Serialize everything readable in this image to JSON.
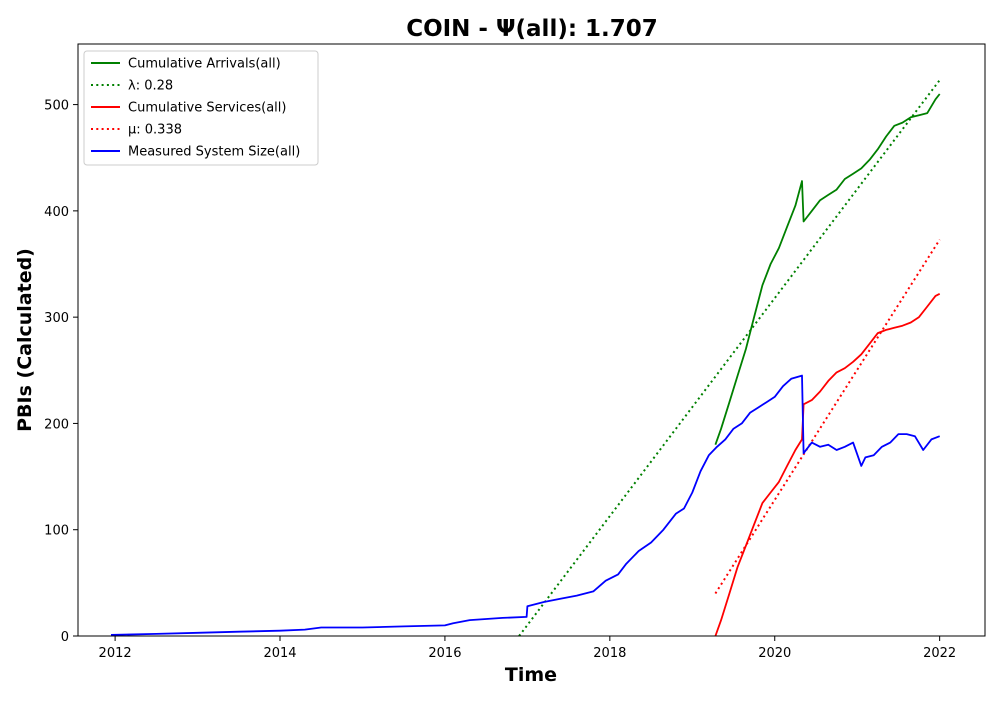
{
  "chart_data": {
    "type": "line",
    "title": "COIN -  Ψ(all): 1.707",
    "xlabel": "Time",
    "ylabel": "PBIs (Calculated)",
    "xlim": [
      2011.55,
      2022.55
    ],
    "ylim": [
      0,
      557
    ],
    "x_ticks": [
      2012,
      2014,
      2016,
      2018,
      2020,
      2022
    ],
    "y_ticks": [
      0,
      100,
      200,
      300,
      400,
      500
    ],
    "x_tick_labels": [
      "2012",
      "2014",
      "2016",
      "2018",
      "2020",
      "2022"
    ],
    "y_tick_labels": [
      "0",
      "100",
      "200",
      "300",
      "400",
      "500"
    ],
    "legend_position": "upper-left",
    "grid": false,
    "series": [
      {
        "name": "Cumulative Arrivals(all)",
        "color": "#008000",
        "style": "solid",
        "x": [
          2019.28,
          2019.35,
          2019.45,
          2019.55,
          2019.65,
          2019.75,
          2019.85,
          2019.95,
          2020.05,
          2020.15,
          2020.25,
          2020.33,
          2020.35,
          2020.45,
          2020.55,
          2020.65,
          2020.75,
          2020.85,
          2020.95,
          2021.05,
          2021.15,
          2021.25,
          2021.35,
          2021.45,
          2021.55,
          2021.65,
          2021.75,
          2021.85,
          2021.95,
          2022.0
        ],
        "y": [
          180,
          195,
          220,
          245,
          270,
          300,
          330,
          350,
          365,
          385,
          405,
          428,
          390,
          400,
          410,
          415,
          420,
          430,
          435,
          440,
          448,
          458,
          470,
          480,
          483,
          488,
          490,
          492,
          505,
          510
        ]
      },
      {
        "name": "λ: 0.28",
        "color": "#008000",
        "style": "dotted",
        "x": [
          2016.9,
          2022.0
        ],
        "y": [
          0,
          523
        ]
      },
      {
        "name": "Cumulative Services(all)",
        "color": "#ff0000",
        "style": "solid",
        "x": [
          2019.28,
          2019.35,
          2019.45,
          2019.55,
          2019.65,
          2019.75,
          2019.85,
          2019.95,
          2020.05,
          2020.15,
          2020.25,
          2020.33,
          2020.35,
          2020.45,
          2020.55,
          2020.65,
          2020.75,
          2020.85,
          2020.95,
          2021.05,
          2021.15,
          2021.25,
          2021.35,
          2021.45,
          2021.55,
          2021.65,
          2021.75,
          2021.85,
          2021.95,
          2022.0
        ],
        "y": [
          0,
          15,
          40,
          65,
          85,
          105,
          125,
          135,
          145,
          160,
          175,
          185,
          218,
          222,
          230,
          240,
          248,
          252,
          258,
          265,
          275,
          285,
          288,
          290,
          292,
          295,
          300,
          310,
          320,
          322
        ]
      },
      {
        "name": "μ: 0.338",
        "color": "#ff0000",
        "style": "dotted",
        "x": [
          2019.28,
          2022.0
        ],
        "y": [
          40,
          373
        ]
      },
      {
        "name": "Measured System Size(all)",
        "color": "#0000ff",
        "style": "solid",
        "x": [
          2011.95,
          2012.5,
          2013.0,
          2013.5,
          2014.0,
          2014.3,
          2014.5,
          2014.7,
          2015.0,
          2015.5,
          2016.0,
          2016.1,
          2016.3,
          2016.5,
          2016.7,
          2016.99,
          2017.0,
          2017.2,
          2017.4,
          2017.6,
          2017.8,
          2017.95,
          2018.1,
          2018.2,
          2018.35,
          2018.5,
          2018.65,
          2018.8,
          2018.9,
          2019.0,
          2019.1,
          2019.2,
          2019.3,
          2019.4,
          2019.5,
          2019.6,
          2019.7,
          2019.8,
          2019.9,
          2020.0,
          2020.1,
          2020.2,
          2020.33,
          2020.35,
          2020.45,
          2020.55,
          2020.65,
          2020.75,
          2020.85,
          2020.95,
          2021.05,
          2021.1,
          2021.2,
          2021.3,
          2021.4,
          2021.5,
          2021.6,
          2021.7,
          2021.8,
          2021.9,
          2022.0
        ],
        "y": [
          1,
          2,
          3,
          4,
          5,
          6,
          8,
          8,
          8,
          9,
          10,
          12,
          15,
          16,
          17,
          18,
          28,
          32,
          35,
          38,
          42,
          52,
          58,
          68,
          80,
          88,
          100,
          115,
          120,
          135,
          155,
          170,
          178,
          185,
          195,
          200,
          210,
          215,
          220,
          225,
          235,
          242,
          245,
          172,
          182,
          178,
          180,
          175,
          178,
          182,
          160,
          168,
          170,
          178,
          182,
          190,
          190,
          188,
          175,
          185,
          188
        ]
      }
    ]
  }
}
